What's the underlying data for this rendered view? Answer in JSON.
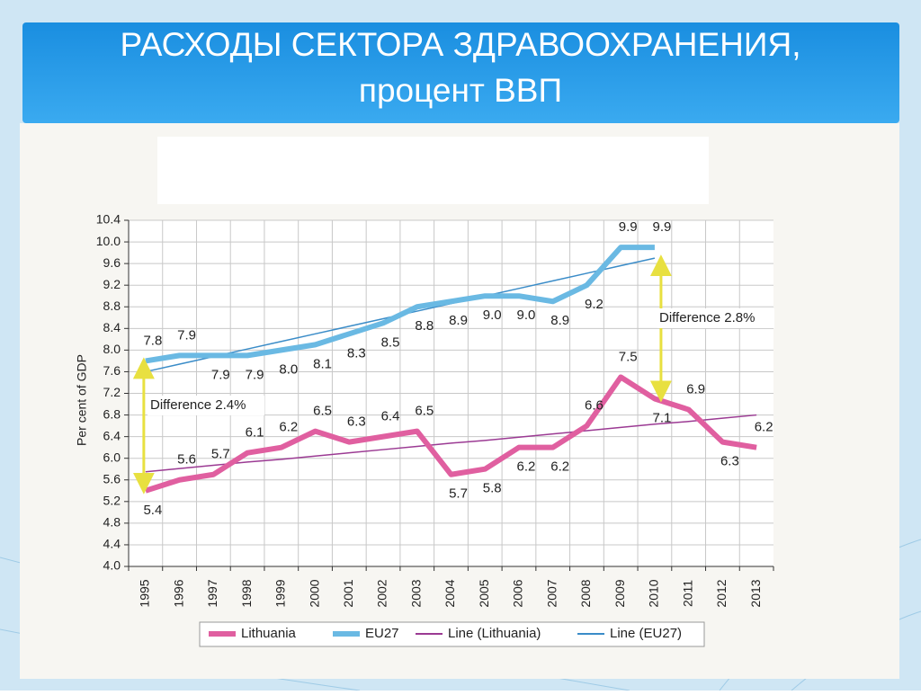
{
  "chart_data": {
    "type": "line",
    "title": "РАСХОДЫ СЕКТОРА ЗДРАВООХРАНЕНИЯ,",
    "subtitle": "процент ВВП",
    "y_label": "Per cent of GDP",
    "categories": [
      "1995",
      "1996",
      "1997",
      "1998",
      "1999",
      "2000",
      "2001",
      "2002",
      "2003",
      "2004",
      "2005",
      "2006",
      "2007",
      "2008",
      "2009",
      "2010",
      "2011",
      "2012",
      "2013"
    ],
    "series": [
      {
        "name": "Lithuania",
        "color": "#e05fa0",
        "width": 6,
        "values": [
          5.4,
          5.6,
          5.7,
          6.1,
          6.2,
          6.5,
          6.3,
          6.4,
          6.5,
          5.7,
          5.8,
          6.2,
          6.2,
          6.6,
          7.5,
          7.1,
          6.9,
          6.3,
          6.2
        ],
        "value_labels": [
          "5.4",
          "5.6",
          "5.7",
          "6.1",
          "6.2",
          "6.5",
          "6.3",
          "6.4",
          "6.5",
          "5.7",
          "5.8",
          "6.2",
          "6.2",
          "6.6",
          "7.5",
          "7.1",
          "6.9",
          "6.3",
          "6.2"
        ]
      },
      {
        "name": "EU27",
        "color": "#6ab9e3",
        "width": 6,
        "values": [
          7.8,
          7.9,
          7.9,
          7.9,
          8.0,
          8.1,
          8.3,
          8.5,
          8.8,
          8.9,
          9.0,
          9.0,
          8.9,
          9.2,
          9.9,
          9.9,
          null,
          null,
          null
        ],
        "value_labels": [
          "7.8",
          "7.9",
          "7.9",
          "7.9",
          "8.0",
          "8.1",
          "8.3",
          "8.5",
          "8.8",
          "8.9",
          "9.0",
          "9.0",
          "8.9",
          "9.2",
          "9.9",
          "9.9",
          null,
          null,
          null
        ]
      },
      {
        "name": "Line (Lithuania)",
        "color": "#9b3a93",
        "width": 1.5,
        "values": [
          5.75,
          5.81,
          5.87,
          5.93,
          5.98,
          6.04,
          6.1,
          6.16,
          6.22,
          6.28,
          6.33,
          6.39,
          6.45,
          6.51,
          6.57,
          6.63,
          6.68,
          6.74,
          6.8
        ]
      },
      {
        "name": "Line (EU27)",
        "color": "#3a8cc8",
        "width": 1.5,
        "values": [
          7.6,
          7.74,
          7.88,
          8.02,
          8.16,
          8.3,
          8.44,
          8.58,
          8.72,
          8.86,
          9.0,
          9.14,
          9.28,
          9.42,
          9.56,
          9.7,
          null,
          null,
          null
        ]
      }
    ],
    "annotations": [
      "Difference 2.4%",
      "Difference 2.8%"
    ],
    "ylim": [
      4.0,
      10.4
    ],
    "yticks": [
      10.4,
      {
        "value": 10,
        "label": "10.0"
      },
      9.6,
      9.2,
      8.8,
      8.4,
      {
        "value": 8,
        "label": "8.0"
      },
      7.6,
      7.2,
      6.8,
      6.4,
      {
        "value": 6,
        "label": "6.0"
      },
      5.6,
      5.2,
      4.8,
      4.4,
      {
        "value": 4,
        "label": "4.0"
      }
    ],
    "grid": true
  }
}
